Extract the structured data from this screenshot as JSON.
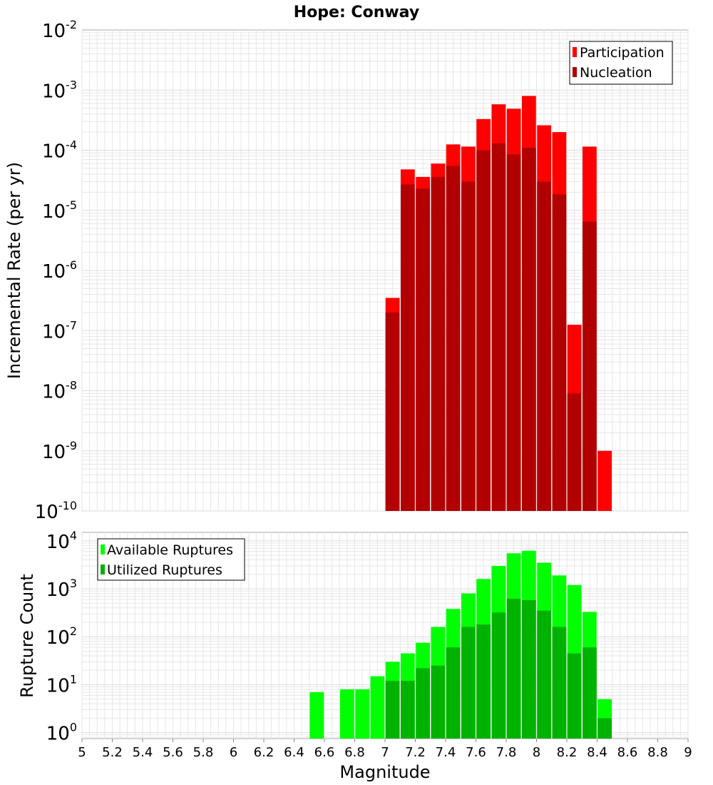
{
  "title": "Hope: Conway",
  "colors": {
    "participation": "#ff0000",
    "nucleation": "#b20000",
    "available": "#00ff00",
    "utilized": "#00b200",
    "grid": "#e6e6e6",
    "frame": "#aaaaaa"
  },
  "chart_data": [
    {
      "type": "bar",
      "panel": "top",
      "scale": "log",
      "ylabel": "Incremental Rate (per yr)",
      "ylim": [
        1e-10,
        0.01
      ],
      "yticks": [
        {
          "base": "10",
          "exp": "-10",
          "value": 1e-10
        },
        {
          "base": "10",
          "exp": "-9",
          "value": 1e-09
        },
        {
          "base": "10",
          "exp": "-8",
          "value": 1e-08
        },
        {
          "base": "10",
          "exp": "-7",
          "value": 1e-07
        },
        {
          "base": "10",
          "exp": "-6",
          "value": 1e-06
        },
        {
          "base": "10",
          "exp": "-5",
          "value": 1e-05
        },
        {
          "base": "10",
          "exp": "-4",
          "value": 0.0001
        },
        {
          "base": "10",
          "exp": "-3",
          "value": 0.001
        },
        {
          "base": "10",
          "exp": "-2",
          "value": 0.01
        }
      ],
      "legend": {
        "placement": "top-right",
        "entries": [
          "Participation",
          "Nucleation"
        ]
      },
      "x": [
        7.05,
        7.15,
        7.25,
        7.35,
        7.45,
        7.55,
        7.65,
        7.75,
        7.85,
        7.95,
        8.05,
        8.15,
        8.25,
        8.35,
        8.45
      ],
      "series": [
        {
          "name": "Participation",
          "color": "#ff0000",
          "values": [
            3.5e-07,
            4.8e-05,
            3.6e-05,
            6e-05,
            0.000125,
            0.000115,
            0.00033,
            0.00058,
            0.00049,
            0.0008,
            0.00026,
            0.0002,
            1.25e-07,
            0.000115,
            1e-09
          ]
        },
        {
          "name": "Nucleation",
          "color": "#b20000",
          "values": [
            2e-07,
            2.7e-05,
            2.3e-05,
            3.6e-05,
            5.5e-05,
            3e-05,
            0.0001,
            0.00013,
            8.5e-05,
            0.00011,
            3e-05,
            1.85e-05,
            9e-09,
            6.5e-06,
            null
          ]
        }
      ]
    },
    {
      "type": "bar",
      "panel": "bottom",
      "scale": "log",
      "ylabel": "Rupture Count",
      "xlabel": "Magnitude",
      "ylim": [
        0.75,
        15000
      ],
      "yticks": [
        {
          "base": "10",
          "exp": "0",
          "value": 1
        },
        {
          "base": "10",
          "exp": "1",
          "value": 10
        },
        {
          "base": "10",
          "exp": "2",
          "value": 100
        },
        {
          "base": "10",
          "exp": "3",
          "value": 1000
        },
        {
          "base": "10",
          "exp": "4",
          "value": 10000
        }
      ],
      "xlim": [
        5,
        9
      ],
      "xticks": [
        "5",
        "5.2",
        "5.4",
        "5.6",
        "5.8",
        "6",
        "6.2",
        "6.4",
        "6.6",
        "6.8",
        "7",
        "7.2",
        "7.4",
        "7.6",
        "7.8",
        "8",
        "8.2",
        "8.4",
        "8.6",
        "8.8",
        "9"
      ],
      "legend": {
        "placement": "top-left",
        "entries": [
          "Available Ruptures",
          "Utilized Ruptures"
        ]
      },
      "x": [
        6.55,
        6.75,
        6.85,
        6.95,
        7.05,
        7.15,
        7.25,
        7.35,
        7.45,
        7.55,
        7.65,
        7.75,
        7.85,
        7.95,
        8.05,
        8.15,
        8.25,
        8.35,
        8.45
      ],
      "series": [
        {
          "name": "Available Ruptures",
          "color": "#00ff00",
          "values": [
            7,
            8,
            8,
            15,
            30,
            45,
            75,
            160,
            380,
            800,
            1600,
            3000,
            5500,
            6200,
            3500,
            1900,
            1200,
            330,
            5
          ]
        },
        {
          "name": "Utilized Ruptures",
          "color": "#00b200",
          "values": [
            null,
            null,
            null,
            null,
            12,
            12,
            22,
            25,
            60,
            160,
            180,
            320,
            620,
            580,
            350,
            160,
            45,
            60,
            2
          ]
        }
      ]
    }
  ]
}
